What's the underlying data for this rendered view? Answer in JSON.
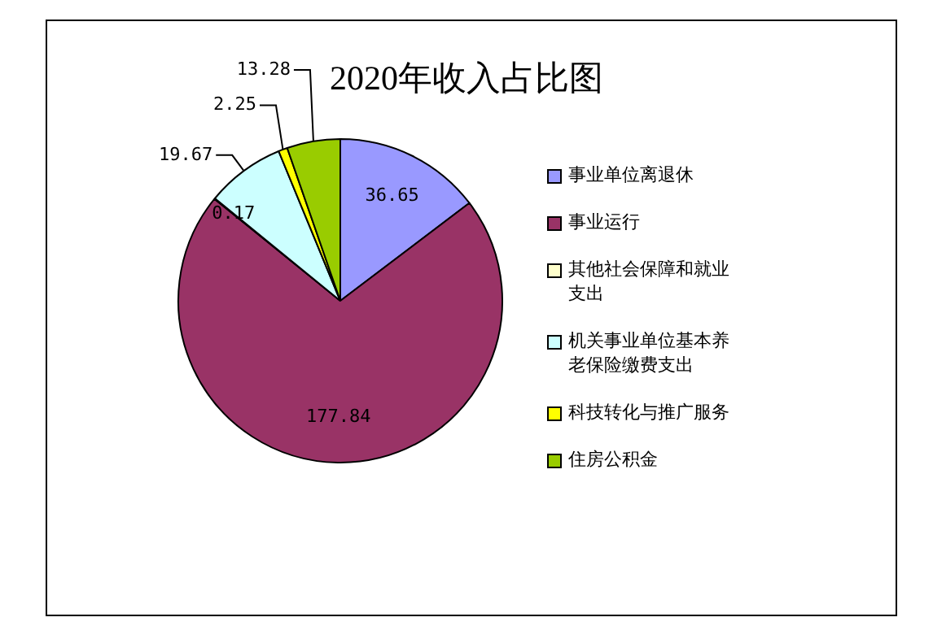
{
  "chart_data": {
    "type": "pie",
    "title": "2020年收入占比图",
    "categories": [
      "事业单位离退休",
      "事业运行",
      "其他社会保障和就业支出",
      "机关事业单位基本养老保险缴费支出",
      "科技转化与推广服务",
      "住房公积金"
    ],
    "values": [
      36.65,
      177.84,
      0.17,
      19.67,
      2.25,
      13.28
    ],
    "colors": [
      "#9999ff",
      "#993366",
      "#ffffcc",
      "#ccffff",
      "#ffff00",
      "#99cc00"
    ],
    "data_labels": true,
    "legend": "right"
  }
}
